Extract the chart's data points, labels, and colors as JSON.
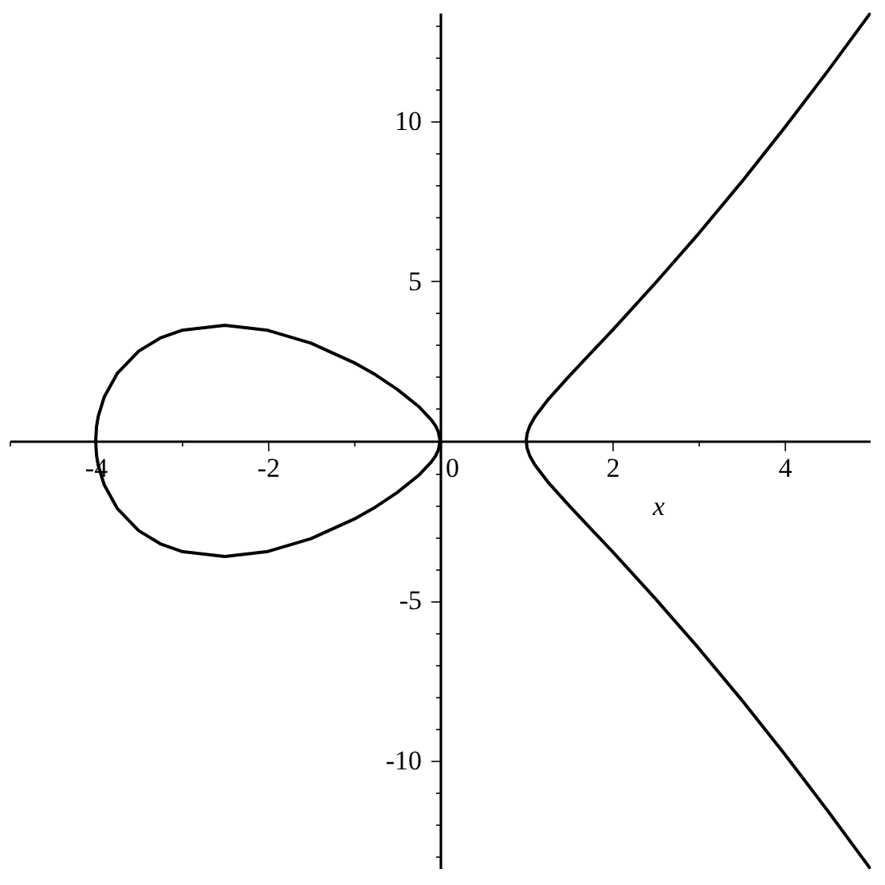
{
  "chart_data": {
    "type": "line",
    "xlabel": "x",
    "xlim": [
      -5,
      5
    ],
    "ylim": [
      -13.4,
      13.4
    ],
    "xticks": [
      {
        "value": -5,
        "label": null
      },
      -4,
      {
        "value": -3,
        "label": null
      },
      -2,
      {
        "value": -1,
        "label": null
      },
      0,
      {
        "value": 1,
        "label": null
      },
      2,
      {
        "value": 3,
        "label": null
      },
      4,
      {
        "value": 5,
        "label": null
      }
    ],
    "yticks": [
      {
        "value": -13,
        "label": null
      },
      {
        "value": -12,
        "label": null
      },
      {
        "value": -11,
        "label": null
      },
      -10,
      {
        "value": -9,
        "label": null
      },
      {
        "value": -8,
        "label": null
      },
      {
        "value": -7,
        "label": null
      },
      {
        "value": -6,
        "label": null
      },
      -5,
      {
        "value": -4,
        "label": null
      },
      {
        "value": -3,
        "label": null
      },
      {
        "value": -2,
        "label": null
      },
      {
        "value": -1,
        "label": null
      },
      {
        "value": 1,
        "label": null
      },
      {
        "value": 2,
        "label": null
      },
      {
        "value": 3,
        "label": null
      },
      {
        "value": 4,
        "label": null
      },
      5,
      {
        "value": 6,
        "label": null
      },
      {
        "value": 7,
        "label": null
      },
      {
        "value": 8,
        "label": null
      },
      {
        "value": 9,
        "label": null
      },
      10,
      {
        "value": 11,
        "label": null
      },
      {
        "value": 12,
        "label": null
      },
      {
        "value": 13,
        "label": null
      }
    ],
    "series": [
      {
        "color": "#000000",
        "x": [
          -4,
          -3.99,
          -3.97,
          -3.9,
          -3.75,
          -3.5,
          -3.25,
          -3,
          -2.5,
          -2,
          -1.5,
          -1,
          -0.75,
          -0.5,
          -0.25,
          -0.1,
          -0.05,
          -0.02,
          0
        ],
        "values": [
          0,
          0.45,
          0.77,
          1.38,
          2.11,
          2.81,
          3.22,
          3.46,
          3.62,
          3.46,
          3.06,
          2.45,
          2.07,
          1.62,
          1.08,
          0.65,
          0.46,
          0.28,
          0
        ]
      },
      {
        "color": "#000000",
        "x": [
          -4,
          -3.99,
          -3.97,
          -3.9,
          -3.75,
          -3.5,
          -3.25,
          -3,
          -2.5,
          -2,
          -1.5,
          -1,
          -0.75,
          -0.5,
          -0.25,
          -0.1,
          -0.05,
          -0.02,
          0
        ],
        "values": [
          0,
          -0.45,
          -0.77,
          -1.38,
          -2.11,
          -2.81,
          -3.22,
          -3.46,
          -3.62,
          -3.46,
          -3.06,
          -2.45,
          -2.07,
          -1.62,
          -1.08,
          -0.65,
          -0.46,
          -0.28,
          0
        ]
      },
      {
        "color": "#000000",
        "x": [
          5,
          4.5,
          4,
          3.5,
          3,
          2.5,
          2,
          1.75,
          1.5,
          1.25,
          1.1,
          1.04,
          1.01,
          1,
          1.01,
          1.04,
          1.1,
          1.25,
          1.5,
          1.75,
          2,
          2.5,
          3,
          3.5,
          4,
          4.5,
          5
        ],
        "values": [
          13.4,
          11.57,
          9.8,
          8.1,
          6.48,
          4.94,
          3.46,
          2.75,
          2.03,
          1.28,
          0.75,
          0.46,
          0.22,
          0,
          -0.22,
          -0.46,
          -0.75,
          -1.28,
          -2.03,
          -2.75,
          -3.46,
          -4.94,
          -6.48,
          -8.1,
          -9.8,
          -11.57,
          -13.4
        ]
      }
    ]
  }
}
